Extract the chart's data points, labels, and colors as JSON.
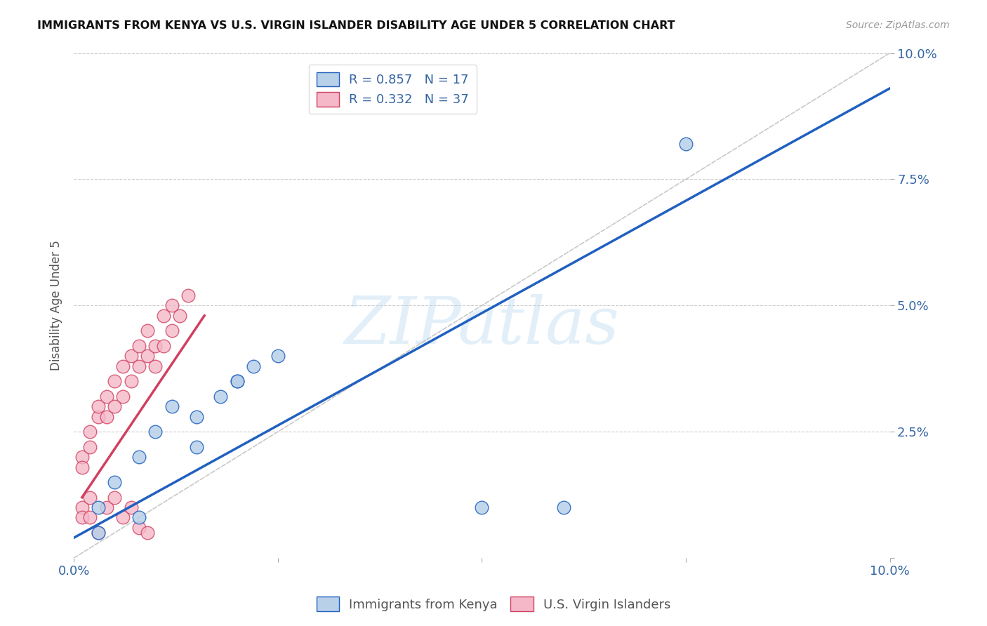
{
  "title": "IMMIGRANTS FROM KENYA VS U.S. VIRGIN ISLANDER DISABILITY AGE UNDER 5 CORRELATION CHART",
  "source": "Source: ZipAtlas.com",
  "ylabel": "Disability Age Under 5",
  "xlim": [
    0.0,
    0.1
  ],
  "ylim": [
    0.0,
    0.1
  ],
  "blue_label": "Immigrants from Kenya",
  "pink_label": "U.S. Virgin Islanders",
  "blue_R": 0.857,
  "blue_N": 17,
  "pink_R": 0.332,
  "pink_N": 37,
  "blue_color": "#b8d0e8",
  "pink_color": "#f4b8c8",
  "blue_line_color": "#2060c0",
  "pink_line_color": "#d04060",
  "axis_color": "#3465a4",
  "watermark": "ZIPatlas",
  "blue_scatter_x": [
    0.003,
    0.005,
    0.008,
    0.01,
    0.012,
    0.015,
    0.018,
    0.02,
    0.022,
    0.025,
    0.008,
    0.015,
    0.02,
    0.05,
    0.06,
    0.075,
    0.003
  ],
  "blue_scatter_y": [
    0.01,
    0.015,
    0.02,
    0.025,
    0.03,
    0.028,
    0.032,
    0.035,
    0.038,
    0.04,
    0.008,
    0.022,
    0.035,
    0.01,
    0.01,
    0.082,
    0.005
  ],
  "pink_scatter_x": [
    0.001,
    0.001,
    0.002,
    0.002,
    0.003,
    0.003,
    0.004,
    0.004,
    0.005,
    0.005,
    0.006,
    0.006,
    0.007,
    0.007,
    0.008,
    0.008,
    0.009,
    0.009,
    0.01,
    0.01,
    0.011,
    0.011,
    0.012,
    0.012,
    0.013,
    0.014,
    0.001,
    0.001,
    0.002,
    0.002,
    0.003,
    0.004,
    0.005,
    0.006,
    0.007,
    0.008,
    0.009
  ],
  "pink_scatter_y": [
    0.02,
    0.018,
    0.025,
    0.022,
    0.028,
    0.03,
    0.032,
    0.028,
    0.035,
    0.03,
    0.038,
    0.032,
    0.04,
    0.035,
    0.042,
    0.038,
    0.045,
    0.04,
    0.042,
    0.038,
    0.048,
    0.042,
    0.05,
    0.045,
    0.048,
    0.052,
    0.01,
    0.008,
    0.012,
    0.008,
    0.005,
    0.01,
    0.012,
    0.008,
    0.01,
    0.006,
    0.005
  ],
  "blue_line_x0": 0.0,
  "blue_line_y0": 0.004,
  "blue_line_x1": 0.1,
  "blue_line_y1": 0.093,
  "pink_line_x0": 0.001,
  "pink_line_y0": 0.012,
  "pink_line_x1": 0.016,
  "pink_line_y1": 0.048,
  "background_color": "#ffffff",
  "grid_color": "#cccccc"
}
